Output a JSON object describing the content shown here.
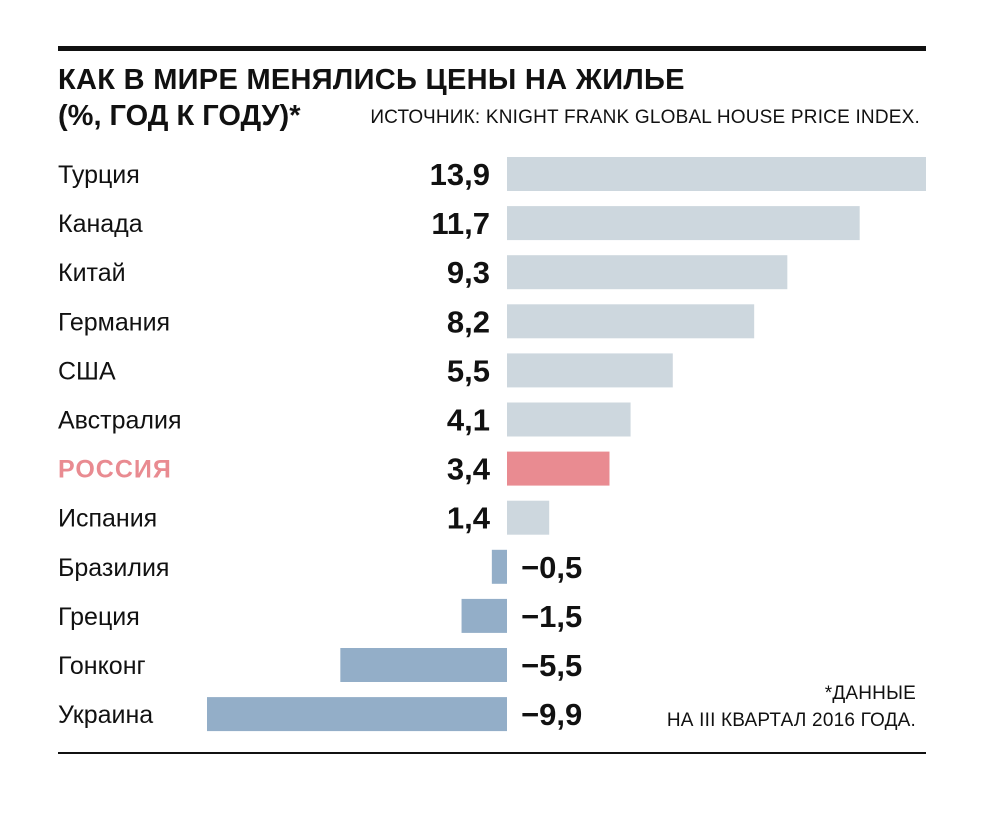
{
  "header": {
    "title": "КАК В МИРЕ МЕНЯЛИСЬ ЦЕНЫ НА ЖИЛЬЕ",
    "subtitle": "(%, ГОД К ГОДУ)*",
    "source": "ИСТОЧНИК: KNIGHT FRANK GLOBAL HOUSE PRICE INDEX."
  },
  "footnote": {
    "line1": "*ДАННЫЕ",
    "line2": "НА III КВАРТАЛ 2016 ГОДА."
  },
  "colors": {
    "positive": "#cdd7de",
    "negative": "#93aec8",
    "highlight": "#e98b91",
    "text": "#111111"
  },
  "chart_data": {
    "type": "bar",
    "orientation": "horizontal",
    "categories": [
      "Турция",
      "Канада",
      "Китай",
      "Германия",
      "США",
      "Австралия",
      "РОССИЯ",
      "Испания",
      "Бразилия",
      "Греция",
      "Гонконг",
      "Украина"
    ],
    "values": [
      13.9,
      11.7,
      9.3,
      8.2,
      5.5,
      4.1,
      3.4,
      1.4,
      -0.5,
      -1.5,
      -5.5,
      -9.9
    ],
    "value_labels": [
      "13,9",
      "11,7",
      "9,3",
      "8,2",
      "5,5",
      "4,1",
      "3,4",
      "1,4",
      "−0,5",
      "−1,5",
      "−5,5",
      "−9,9"
    ],
    "highlight": "РОССИЯ",
    "title": "КАК В МИРЕ МЕНЯЛИСЬ ЦЕНЫ НА ЖИЛЬЕ",
    "xlabel": "",
    "ylabel": "",
    "xlim": [
      -9.9,
      13.9
    ],
    "grid": false,
    "legend": "none"
  }
}
